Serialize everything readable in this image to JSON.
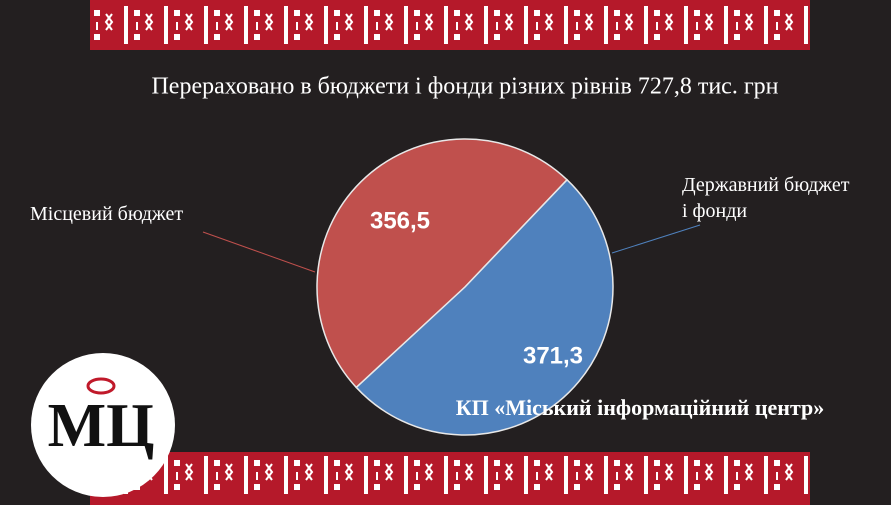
{
  "chart_data": {
    "type": "pie",
    "title": "Перераховано в бюджети і фонди різних рівнів 727,8 тис. грн",
    "categories": [
      "Місцевий бюджет",
      "Державний бюджет і фонди"
    ],
    "values": [
      356.5,
      371.3
    ],
    "value_labels": [
      "356,5",
      "371,3"
    ],
    "colors": [
      "#c0504d",
      "#4f81bd"
    ],
    "annotation": "КП «Міський інформаційний центр»",
    "logo": "МЦ"
  }
}
